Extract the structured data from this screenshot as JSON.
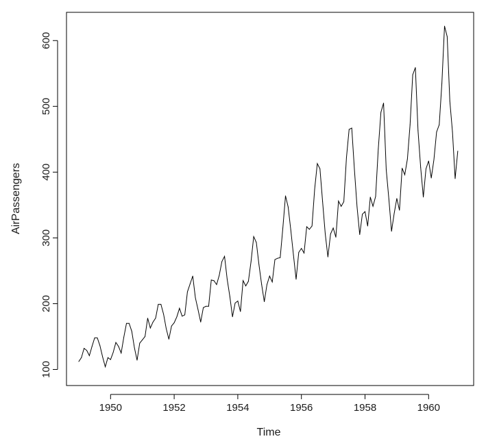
{
  "chart_data": {
    "type": "line",
    "title": "",
    "xlabel": "Time",
    "ylabel": "AirPassengers",
    "xlim": [
      1949,
      1961
    ],
    "ylim": [
      100,
      622
    ],
    "xticks": [
      1950,
      1952,
      1954,
      1956,
      1958,
      1960
    ],
    "yticks": [
      100,
      200,
      300,
      400,
      500,
      600
    ],
    "grid": false,
    "legend": "none",
    "line_color": "#000000",
    "series": [
      {
        "x_start": 1949,
        "frequency": 12,
        "values": [
          112,
          118,
          132,
          129,
          121,
          135,
          148,
          148,
          136,
          119,
          104,
          118,
          115,
          126,
          141,
          135,
          125,
          149,
          170,
          170,
          158,
          133,
          114,
          140,
          145,
          150,
          178,
          163,
          172,
          178,
          199,
          199,
          184,
          162,
          146,
          166,
          171,
          180,
          193,
          181,
          183,
          218,
          230,
          242,
          209,
          191,
          172,
          194,
          196,
          196,
          236,
          235,
          229,
          243,
          264,
          272,
          237,
          211,
          180,
          201,
          204,
          188,
          235,
          227,
          234,
          264,
          302,
          293,
          259,
          229,
          203,
          229,
          242,
          233,
          267,
          269,
          270,
          315,
          364,
          347,
          312,
          274,
          237,
          278,
          284,
          277,
          317,
          313,
          318,
          374,
          413,
          405,
          355,
          306,
          271,
          306,
          315,
          301,
          356,
          348,
          355,
          422,
          465,
          467,
          404,
          347,
          305,
          336,
          340,
          318,
          362,
          348,
          363,
          435,
          491,
          505,
          404,
          359,
          310,
          337,
          360,
          342,
          406,
          396,
          420,
          472,
          548,
          559,
          463,
          407,
          362,
          405,
          417,
          391,
          419,
          461,
          472,
          535,
          622,
          606,
          508,
          461,
          390,
          432
        ]
      }
    ]
  }
}
